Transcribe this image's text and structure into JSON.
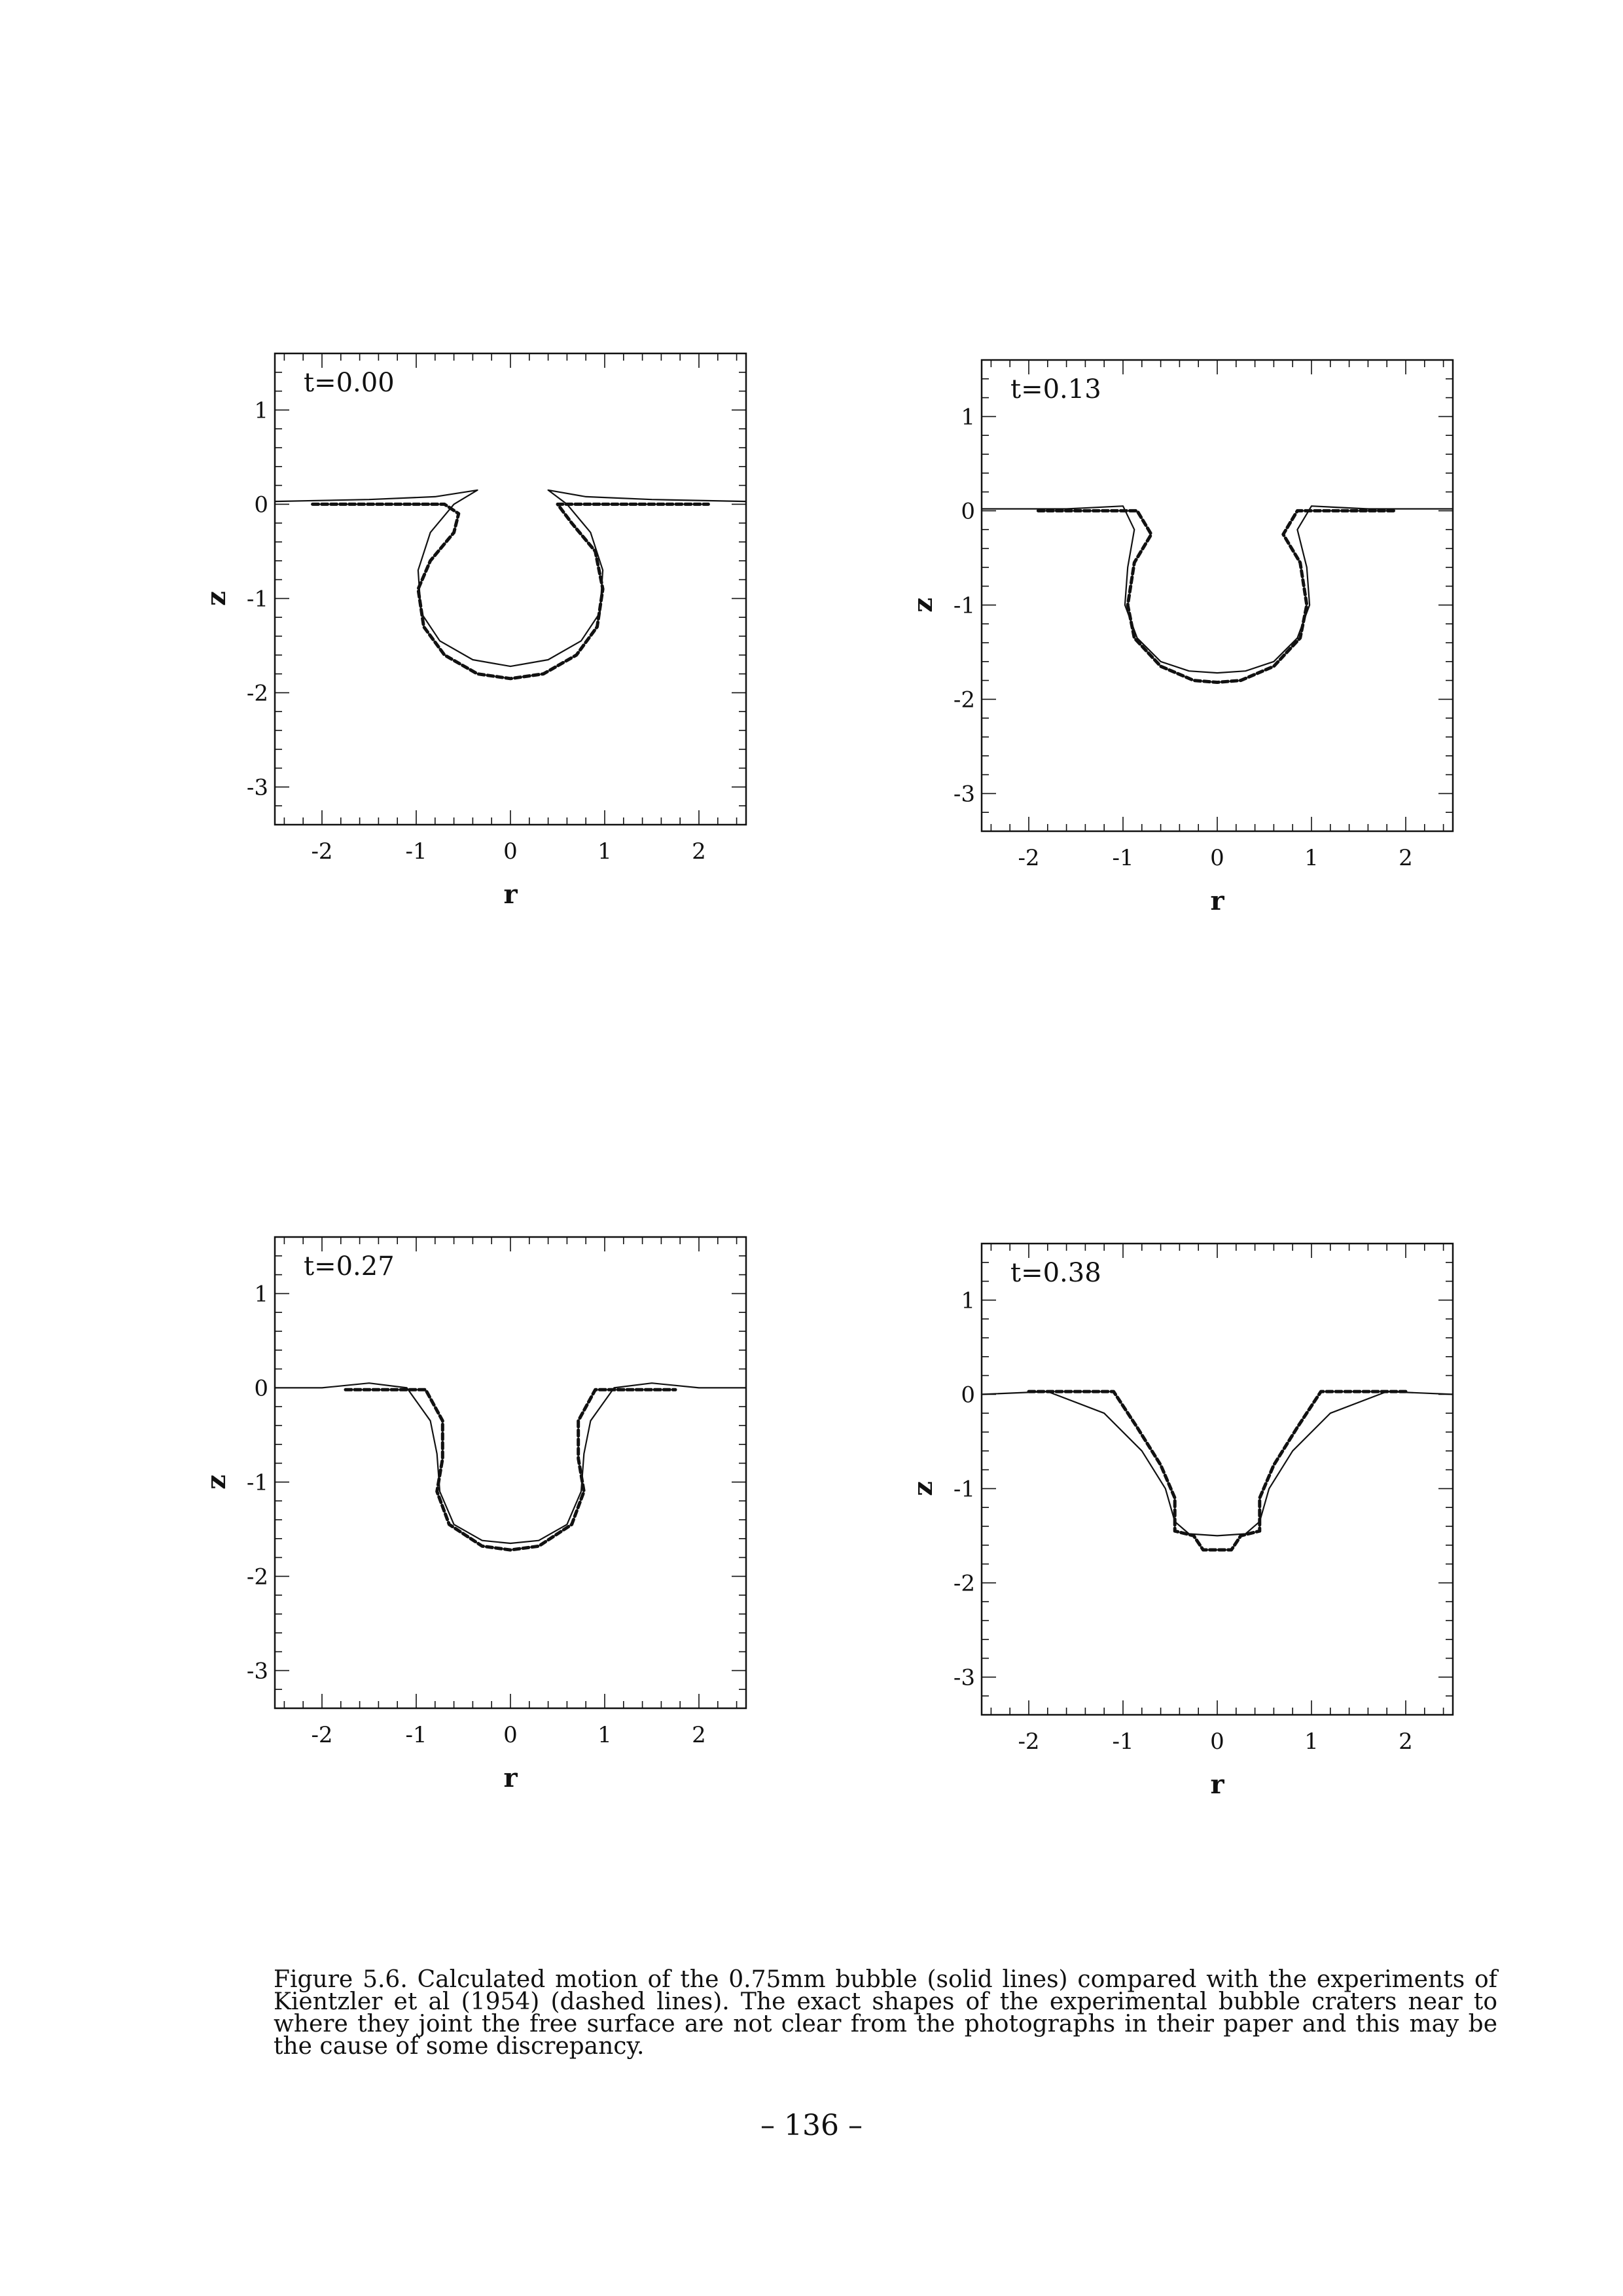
{
  "chart_data": [
    {
      "type": "line",
      "label": "t=0.00",
      "xlabel": "r",
      "ylabel": "z",
      "xlim": [
        -2.5,
        2.5
      ],
      "ylim": [
        -3.4,
        1.6
      ],
      "xticks": [
        "-2",
        "-1",
        "0",
        "1",
        "2"
      ],
      "yticks": [
        "1",
        "0",
        "-1",
        "-2",
        "-3"
      ],
      "series": [
        {
          "style": "solid",
          "segments": [
            [
              [
                -2.5,
                0.03
              ],
              [
                -1.5,
                0.05
              ],
              [
                -0.8,
                0.08
              ],
              [
                -0.35,
                0.15
              ],
              [
                -0.6,
                0.0
              ],
              [
                -0.85,
                -0.3
              ],
              [
                -0.98,
                -0.7
              ],
              [
                -0.95,
                -1.15
              ],
              [
                -0.75,
                -1.45
              ],
              [
                -0.4,
                -1.65
              ],
              [
                0,
                -1.72
              ],
              [
                0.4,
                -1.65
              ],
              [
                0.75,
                -1.45
              ],
              [
                0.95,
                -1.15
              ],
              [
                0.98,
                -0.7
              ],
              [
                0.85,
                -0.3
              ],
              [
                0.6,
                0.0
              ],
              [
                0.4,
                0.15
              ],
              [
                0.8,
                0.08
              ],
              [
                1.5,
                0.05
              ],
              [
                2.5,
                0.03
              ]
            ]
          ]
        },
        {
          "style": "dashed",
          "segments": [
            [
              [
                -2.1,
                0.0
              ],
              [
                -0.7,
                0.0
              ],
              [
                -0.55,
                -0.1
              ],
              [
                -0.6,
                -0.3
              ],
              [
                -0.85,
                -0.6
              ],
              [
                -0.98,
                -0.9
              ],
              [
                -0.92,
                -1.3
              ],
              [
                -0.7,
                -1.6
              ],
              [
                -0.35,
                -1.8
              ],
              [
                0,
                -1.85
              ],
              [
                0.35,
                -1.8
              ],
              [
                0.7,
                -1.6
              ],
              [
                0.92,
                -1.3
              ],
              [
                0.98,
                -0.9
              ],
              [
                0.9,
                -0.5
              ],
              [
                0.65,
                -0.2
              ],
              [
                0.5,
                0.0
              ],
              [
                0.7,
                0.0
              ],
              [
                2.1,
                0.0
              ]
            ]
          ]
        }
      ]
    },
    {
      "type": "line",
      "label": "t=0.13",
      "xlabel": "r",
      "ylabel": "z",
      "xlim": [
        -2.5,
        2.5
      ],
      "ylim": [
        -3.4,
        1.6
      ],
      "xticks": [
        "-2",
        "-1",
        "0",
        "1",
        "2"
      ],
      "yticks": [
        "1",
        "0",
        "-1",
        "-2",
        "-3"
      ],
      "series": [
        {
          "style": "solid",
          "segments": [
            [
              [
                -2.5,
                0.02
              ],
              [
                -1.6,
                0.02
              ],
              [
                -1.0,
                0.05
              ],
              [
                -0.88,
                -0.2
              ],
              [
                -0.95,
                -0.6
              ],
              [
                -0.98,
                -1.0
              ],
              [
                -0.85,
                -1.35
              ],
              [
                -0.6,
                -1.6
              ],
              [
                -0.3,
                -1.7
              ],
              [
                0,
                -1.72
              ],
              [
                0.3,
                -1.7
              ],
              [
                0.6,
                -1.6
              ],
              [
                0.85,
                -1.35
              ],
              [
                0.98,
                -1.0
              ],
              [
                0.95,
                -0.6
              ],
              [
                0.85,
                -0.2
              ],
              [
                1.0,
                0.05
              ],
              [
                1.6,
                0.02
              ],
              [
                2.5,
                0.02
              ]
            ]
          ]
        },
        {
          "style": "dashed",
          "segments": [
            [
              [
                -1.9,
                0.0
              ],
              [
                -0.85,
                0.0
              ],
              [
                -0.7,
                -0.25
              ],
              [
                -0.88,
                -0.55
              ],
              [
                -0.95,
                -1.0
              ],
              [
                -0.88,
                -1.35
              ],
              [
                -0.6,
                -1.65
              ],
              [
                -0.25,
                -1.8
              ],
              [
                0,
                -1.82
              ],
              [
                0.25,
                -1.8
              ],
              [
                0.6,
                -1.65
              ],
              [
                0.88,
                -1.35
              ],
              [
                0.95,
                -1.0
              ],
              [
                0.88,
                -0.55
              ],
              [
                0.7,
                -0.25
              ],
              [
                0.85,
                0.0
              ],
              [
                1.9,
                0.0
              ]
            ]
          ]
        }
      ]
    },
    {
      "type": "line",
      "label": "t=0.27",
      "xlabel": "r",
      "ylabel": "z",
      "xlim": [
        -2.5,
        2.5
      ],
      "ylim": [
        -3.4,
        1.6
      ],
      "xticks": [
        "-2",
        "-1",
        "0",
        "1",
        "2"
      ],
      "yticks": [
        "1",
        "0",
        "-1",
        "-2",
        "-3"
      ],
      "series": [
        {
          "style": "solid",
          "segments": [
            [
              [
                -2.5,
                0.0
              ],
              [
                -2.0,
                0.0
              ],
              [
                -1.5,
                0.05
              ],
              [
                -1.1,
                0.0
              ],
              [
                -0.85,
                -0.35
              ],
              [
                -0.78,
                -0.7
              ],
              [
                -0.75,
                -1.1
              ],
              [
                -0.6,
                -1.45
              ],
              [
                -0.3,
                -1.62
              ],
              [
                0,
                -1.65
              ],
              [
                0.3,
                -1.62
              ],
              [
                0.6,
                -1.45
              ],
              [
                0.75,
                -1.1
              ],
              [
                0.78,
                -0.7
              ],
              [
                0.85,
                -0.35
              ],
              [
                1.1,
                0.0
              ],
              [
                1.5,
                0.05
              ],
              [
                2.0,
                0.0
              ],
              [
                2.5,
                0.0
              ]
            ]
          ]
        },
        {
          "style": "dashed",
          "segments": [
            [
              [
                -1.75,
                -0.02
              ],
              [
                -0.9,
                -0.02
              ],
              [
                -0.72,
                -0.35
              ],
              [
                -0.72,
                -0.75
              ],
              [
                -0.78,
                -1.1
              ],
              [
                -0.65,
                -1.45
              ],
              [
                -0.3,
                -1.68
              ],
              [
                0,
                -1.72
              ],
              [
                0.3,
                -1.68
              ],
              [
                0.65,
                -1.45
              ],
              [
                0.78,
                -1.1
              ],
              [
                0.72,
                -0.75
              ],
              [
                0.72,
                -0.35
              ],
              [
                0.9,
                -0.02
              ],
              [
                1.75,
                -0.02
              ]
            ]
          ]
        }
      ]
    },
    {
      "type": "line",
      "label": "t=0.38",
      "xlabel": "r",
      "ylabel": "z",
      "xlim": [
        -2.5,
        2.5
      ],
      "ylim": [
        -3.4,
        1.6
      ],
      "xticks": [
        "-2",
        "-1",
        "0",
        "1",
        "2"
      ],
      "yticks": [
        "1",
        "0",
        "-1",
        "-2",
        "-3"
      ],
      "series": [
        {
          "style": "solid",
          "segments": [
            [
              [
                -2.5,
                0.0
              ],
              [
                -1.8,
                0.03
              ],
              [
                -1.2,
                -0.2
              ],
              [
                -0.8,
                -0.6
              ],
              [
                -0.55,
                -1.0
              ],
              [
                -0.45,
                -1.35
              ],
              [
                -0.3,
                -1.48
              ],
              [
                0,
                -1.5
              ],
              [
                0.3,
                -1.48
              ],
              [
                0.45,
                -1.35
              ],
              [
                0.55,
                -1.0
              ],
              [
                0.8,
                -0.6
              ],
              [
                1.2,
                -0.2
              ],
              [
                1.8,
                0.03
              ],
              [
                2.5,
                0.0
              ]
            ]
          ]
        },
        {
          "style": "dashed",
          "segments": [
            [
              [
                -2.0,
                0.03
              ],
              [
                -1.1,
                0.03
              ],
              [
                -0.85,
                -0.35
              ],
              [
                -0.6,
                -0.75
              ],
              [
                -0.45,
                -1.1
              ],
              [
                -0.45,
                -1.45
              ],
              [
                -0.25,
                -1.5
              ],
              [
                -0.15,
                -1.65
              ],
              [
                0.15,
                -1.65
              ],
              [
                0.25,
                -1.5
              ],
              [
                0.45,
                -1.45
              ],
              [
                0.45,
                -1.1
              ],
              [
                0.6,
                -0.75
              ],
              [
                0.85,
                -0.35
              ],
              [
                1.1,
                0.03
              ],
              [
                2.0,
                0.03
              ]
            ]
          ]
        }
      ]
    }
  ],
  "caption": "Figure 5.6. Calculated motion of the 0.75mm bubble (solid lines) compared with the experiments of Kientzler et al (1954) (dashed lines). The exact shapes of the experimental bubble craters near to where they joint the free surface are not clear from the photographs in their paper and this may be the cause of some discrepancy.",
  "page_number": "– 136 –"
}
